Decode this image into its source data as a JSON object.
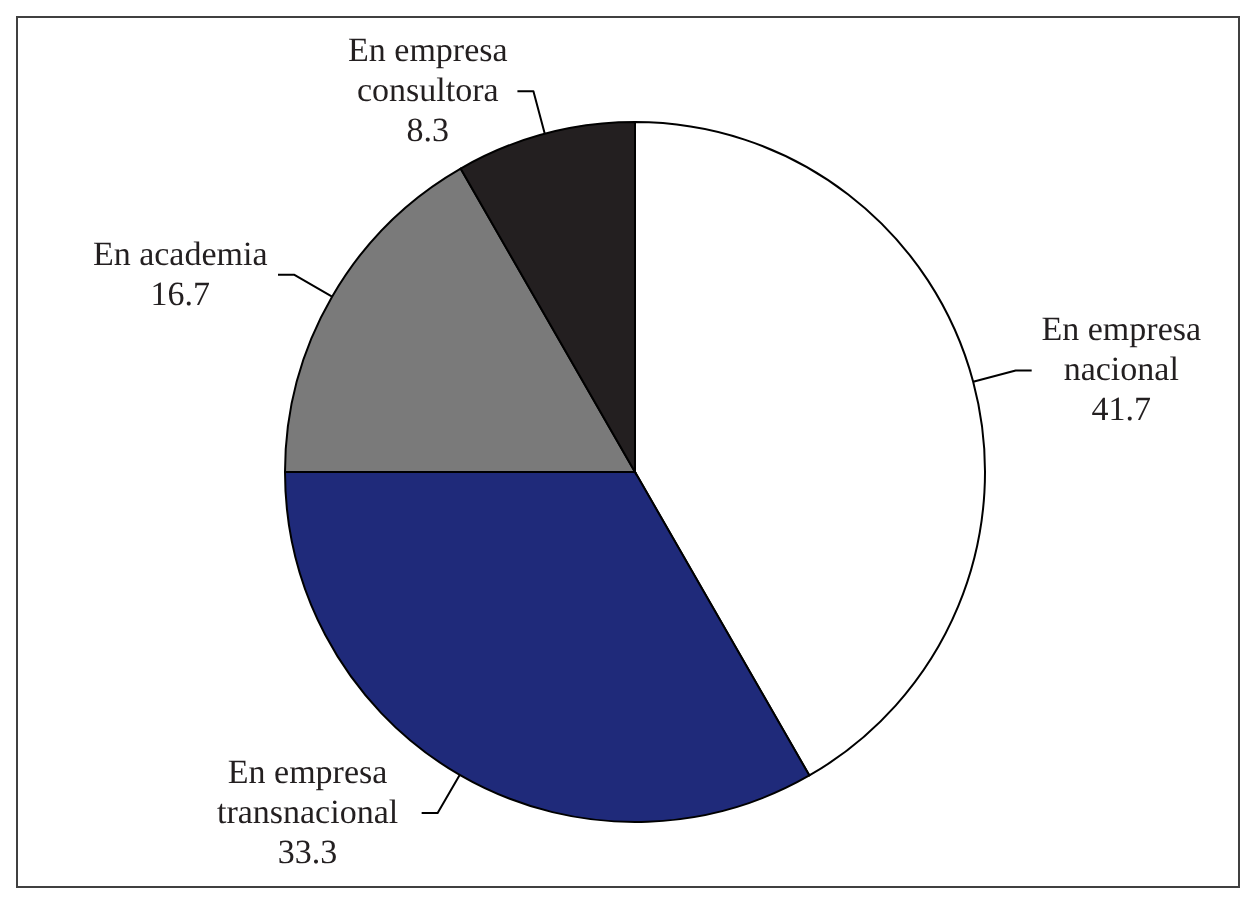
{
  "chart_data": {
    "type": "pie",
    "categories": [
      "En empresa nacional",
      "En empresa transnacional",
      "En academia",
      "En empresa consultora"
    ],
    "values": [
      41.7,
      33.3,
      16.7,
      8.3
    ],
    "colors": [
      "#ffffff",
      "#1f2a7a",
      "#7a7a7a",
      "#231f20"
    ],
    "data_labels": true
  }
}
